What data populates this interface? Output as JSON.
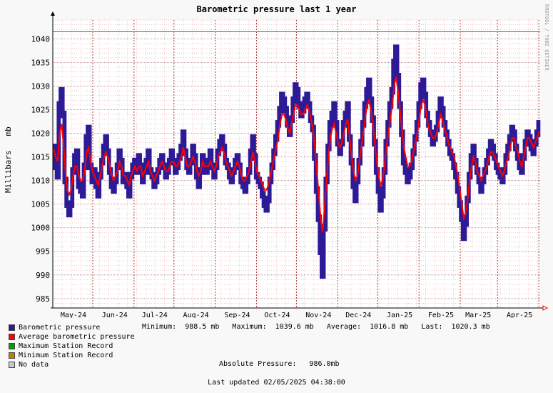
{
  "header": {
    "title": "Barometric pressure last 1 year",
    "ylabel": "Millibars   mb",
    "vendor": "RRDTOOL / TOBI OETIKER"
  },
  "legend": [
    {
      "label": "Barometric pressure",
      "color": "#2c1a96"
    },
    {
      "label": "Average barometric pressure",
      "color": "#ff0000"
    },
    {
      "label": "Maximum Station Record",
      "color": "#00a000"
    },
    {
      "label": "Minimum Station Record",
      "color": "#c08000"
    },
    {
      "label": "No data",
      "color": "#c8c8c8"
    }
  ],
  "stats": {
    "text": "Minimum:  988.5 mb   Maximum:  1039.6 mb   Average:  1016.8 mb   Last:  1020.3 mb"
  },
  "absolute": "Absolute Pressure:   986.0mb",
  "updated": "Last updated 02/05/2025 04:38:00",
  "chart_data": {
    "type": "area",
    "title": "Barometric pressure last 1 year",
    "ylabel": "Millibars   mb",
    "ylim": [
      983,
      1044
    ],
    "yticks": [
      985,
      990,
      995,
      1000,
      1005,
      1010,
      1015,
      1020,
      1025,
      1030,
      1035,
      1040
    ],
    "xticks": [
      "May-24",
      "Jun-24",
      "Jul-24",
      "Aug-24",
      "Sep-24",
      "Oct-24",
      "Nov-24",
      "Dec-24",
      "Jan-25",
      "Feb-25",
      "Mar-25",
      "Apr-25"
    ],
    "x_range_days": 366,
    "month_day_offsets": [
      30,
      61,
      91,
      122,
      153,
      183,
      214,
      244,
      275,
      306,
      334,
      365
    ],
    "grid": true,
    "max_station_record": 1041.5,
    "series": [
      {
        "name": "Barometric pressure",
        "color": "#2c1a96",
        "values": [
          1017,
          1013,
          1011,
          1026,
          1029,
          1024,
          1010,
          1005,
          1003,
          1005,
          1012,
          1015,
          1016,
          1009,
          1008,
          1007,
          1013,
          1019,
          1021,
          1013,
          1010,
          1012,
          1009,
          1007,
          1011,
          1014,
          1017,
          1019,
          1016,
          1012,
          1009,
          1008,
          1010,
          1013,
          1016,
          1014,
          1010,
          1011,
          1009,
          1007,
          1011,
          1013,
          1014,
          1012,
          1015,
          1013,
          1010,
          1012,
          1014,
          1016,
          1012,
          1011,
          1009,
          1010,
          1012,
          1014,
          1015,
          1013,
          1011,
          1012,
          1014,
          1016,
          1014,
          1012,
          1013,
          1015,
          1017,
          1020,
          1016,
          1013,
          1012,
          1014,
          1017,
          1015,
          1011,
          1009,
          1012,
          1015,
          1013,
          1012,
          1014,
          1016,
          1013,
          1011,
          1013,
          1016,
          1018,
          1019,
          1017,
          1014,
          1013,
          1011,
          1010,
          1012,
          1014,
          1015,
          1013,
          1010,
          1009,
          1008,
          1010,
          1012,
          1016,
          1019,
          1015,
          1011,
          1010,
          1009,
          1007,
          1005,
          1004,
          1006,
          1010,
          1013,
          1016,
          1019,
          1022,
          1025,
          1028,
          1027,
          1025,
          1022,
          1020,
          1023,
          1027,
          1030,
          1029,
          1026,
          1024,
          1025,
          1027,
          1028,
          1026,
          1023,
          1021,
          1015,
          1008,
          1002,
          995,
          990,
          1000,
          1010,
          1017,
          1022,
          1024,
          1026,
          1022,
          1018,
          1016,
          1018,
          1022,
          1024,
          1026,
          1019,
          1014,
          1009,
          1006,
          1010,
          1014,
          1018,
          1022,
          1026,
          1029,
          1031,
          1027,
          1023,
          1018,
          1012,
          1008,
          1004,
          1007,
          1012,
          1018,
          1022,
          1026,
          1029,
          1035,
          1038,
          1032,
          1026,
          1020,
          1014,
          1012,
          1010,
          1011,
          1013,
          1016,
          1019,
          1022,
          1026,
          1030,
          1031,
          1028,
          1024,
          1022,
          1020,
          1018,
          1019,
          1021,
          1024,
          1027,
          1025,
          1022,
          1020,
          1018,
          1016,
          1015,
          1013,
          1011,
          1008,
          1005,
          1002,
          998,
          1001,
          1006,
          1011,
          1015,
          1017,
          1014,
          1012,
          1010,
          1008,
          1010,
          1012,
          1014,
          1016,
          1018,
          1017,
          1015,
          1013,
          1012,
          1011,
          1010,
          1012,
          1015,
          1017,
          1019,
          1021,
          1020,
          1017,
          1015,
          1013,
          1012,
          1015,
          1018,
          1020,
          1019,
          1017,
          1016,
          1018,
          1020,
          1022
        ]
      },
      {
        "name": "Average barometric pressure",
        "color": "#ff0000",
        "values": [
          1016.5,
          1015,
          1014,
          1020,
          1022,
          1018,
          1012,
          1008,
          1007,
          1008,
          1011,
          1013,
          1013,
          1011,
          1010,
          1010,
          1012,
          1016,
          1017,
          1014,
          1012,
          1011,
          1010,
          1009,
          1011,
          1013,
          1015,
          1016,
          1015,
          1013,
          1011,
          1010,
          1011,
          1012,
          1014,
          1013,
          1011,
          1011,
          1010,
          1009,
          1011,
          1012,
          1013,
          1012,
          1013,
          1013,
          1011,
          1012,
          1013,
          1014,
          1012,
          1011,
          1010,
          1011,
          1012,
          1013,
          1014,
          1013,
          1012,
          1012,
          1013,
          1014,
          1014,
          1013,
          1013,
          1014,
          1015,
          1017,
          1015,
          1013,
          1013,
          1014,
          1015,
          1014,
          1012,
          1011,
          1012,
          1014,
          1013,
          1013,
          1013,
          1014,
          1013,
          1012,
          1013,
          1015,
          1016,
          1017,
          1016,
          1014,
          1013,
          1012,
          1011,
          1012,
          1013,
          1014,
          1013,
          1011,
          1010,
          1010,
          1011,
          1012,
          1014,
          1016,
          1014,
          1012,
          1011,
          1010,
          1009,
          1008,
          1008,
          1009,
          1011,
          1013,
          1015,
          1017,
          1019,
          1022,
          1024,
          1024,
          1023,
          1021,
          1020,
          1022,
          1024,
          1026,
          1026,
          1025,
          1024,
          1024,
          1025,
          1026,
          1025,
          1023,
          1021,
          1017,
          1012,
          1007,
          1002,
          999,
          1004,
          1010,
          1015,
          1019,
          1021,
          1022,
          1020,
          1018,
          1017,
          1018,
          1020,
          1022,
          1023,
          1019,
          1015,
          1012,
          1010,
          1011,
          1014,
          1017,
          1020,
          1023,
          1026,
          1027,
          1025,
          1022,
          1018,
          1014,
          1011,
          1009,
          1010,
          1013,
          1017,
          1020,
          1023,
          1026,
          1030,
          1032,
          1029,
          1025,
          1021,
          1017,
          1015,
          1013,
          1013,
          1014,
          1016,
          1018,
          1020,
          1023,
          1026,
          1027,
          1026,
          1023,
          1021,
          1020,
          1019,
          1019,
          1020,
          1022,
          1024,
          1023,
          1021,
          1020,
          1018,
          1017,
          1016,
          1015,
          1013,
          1011,
          1008,
          1005,
          1002,
          1003,
          1006,
          1010,
          1013,
          1015,
          1014,
          1012,
          1011,
          1010,
          1011,
          1012,
          1013,
          1015,
          1016,
          1016,
          1015,
          1014,
          1013,
          1012,
          1011,
          1012,
          1014,
          1015,
          1017,
          1019,
          1019,
          1017,
          1016,
          1014,
          1013,
          1015,
          1017,
          1019,
          1019,
          1018,
          1017,
          1018,
          1019,
          1020.3
        ]
      }
    ]
  }
}
